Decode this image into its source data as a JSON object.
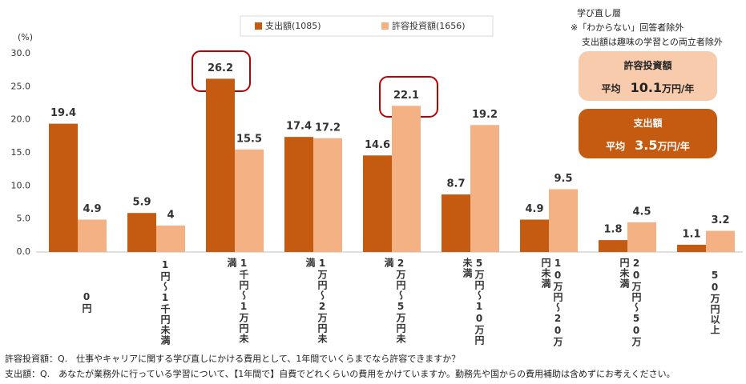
{
  "chart_data": {
    "type": "bar",
    "y_unit_label": "(%)",
    "categories": [
      "0円",
      "1円～1千円未満",
      "1千円～1万円未満",
      "1万円～2万円未満",
      "2万円～5万円未満",
      "5万円～10万円未満",
      "10万円～20万円未満",
      "20万円～50万円未満",
      "50万円以上"
    ],
    "series": [
      {
        "name": "支出額(1085)",
        "color": "#c55a11",
        "values": [
          19.4,
          5.9,
          26.2,
          17.4,
          14.6,
          8.7,
          4.9,
          1.8,
          1.1
        ]
      },
      {
        "name": "許容投資額(1656)",
        "color": "#f4b183",
        "values": [
          4.9,
          4.0,
          15.5,
          17.2,
          22.1,
          19.2,
          9.5,
          4.5,
          3.2
        ]
      }
    ],
    "ylim": [
      0,
      30
    ],
    "yticks": [
      {
        "value": 0,
        "label": "0.0"
      },
      {
        "value": 5,
        "label": "5.0"
      },
      {
        "value": 10,
        "label": "10.0"
      },
      {
        "value": 15,
        "label": "15.0"
      },
      {
        "value": 20,
        "label": "20.0"
      },
      {
        "value": 25,
        "label": "25.0"
      },
      {
        "value": 30,
        "label": "30.0"
      }
    ],
    "notes": [
      "学び直し層",
      "※「わからない」回答者除外",
      "支出額は趣味の学習との両立者除外"
    ],
    "boxes": [
      {
        "title": "許容投資額",
        "prefix": "平均",
        "value": "10.1",
        "unit": "万円/年"
      },
      {
        "title": "支出額",
        "prefix": "平均",
        "value": "3.5",
        "unit": "万円/年"
      }
    ],
    "footnotes": [
      "許容投資額：Q.　仕事やキャリアに関する学び直しにかける費用として、1年間でいくらまでなら許容できますか？",
      "支出額：Q.　あなたが業務外に行っている学習について、【1年間で】自費でどれくらいの費用をかけていますか。勤務先や国からの費用補助は含めずにお考えください。"
    ]
  }
}
